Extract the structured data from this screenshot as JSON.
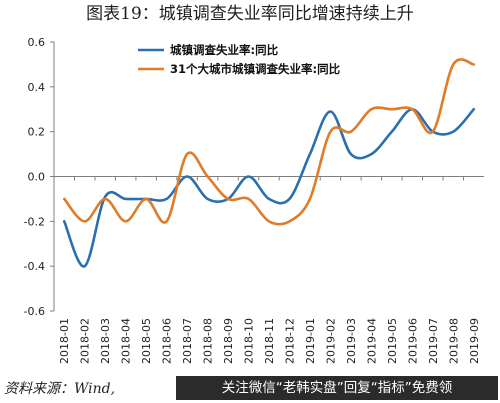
{
  "title": "图表19：城镇调查失业率同比增速持续上升",
  "source": "资料来源：Wind,",
  "banner": "关注微信“老韩实盘”回复“指标”免费领",
  "chart_data": {
    "type": "line",
    "categories": [
      "2018-01",
      "2018-02",
      "2018-03",
      "2018-04",
      "2018-05",
      "2018-06",
      "2018-07",
      "2018-08",
      "2018-09",
      "2018-10",
      "2018-11",
      "2018-12",
      "2019-01",
      "2019-02",
      "2019-03",
      "2019-04",
      "2019-05",
      "2019-06",
      "2019-07",
      "2019-08",
      "2019-09"
    ],
    "series": [
      {
        "name": "城镇调查失业率:同比",
        "color": "#2a6fb0",
        "values": [
          -0.2,
          -0.4,
          -0.09,
          -0.1,
          -0.1,
          -0.1,
          0.0,
          -0.1,
          -0.1,
          0.0,
          -0.1,
          -0.1,
          0.1,
          0.29,
          0.1,
          0.1,
          0.2,
          0.3,
          0.2,
          0.2,
          0.3
        ]
      },
      {
        "name": "31个大城市城镇调查失业率:同比",
        "color": "#e07b27",
        "values": [
          -0.1,
          -0.2,
          -0.1,
          -0.2,
          -0.1,
          -0.2,
          0.1,
          0.0,
          -0.1,
          -0.1,
          -0.2,
          -0.2,
          -0.1,
          0.2,
          0.2,
          0.3,
          0.3,
          0.3,
          0.2,
          0.5,
          0.5
        ]
      }
    ],
    "ylim": [
      -0.6,
      0.6
    ],
    "yticks": [
      "-0.6",
      "-0.4",
      "-0.2",
      "0.0",
      "0.2",
      "0.4",
      "0.6"
    ],
    "grid": false,
    "legend": "top-left"
  }
}
